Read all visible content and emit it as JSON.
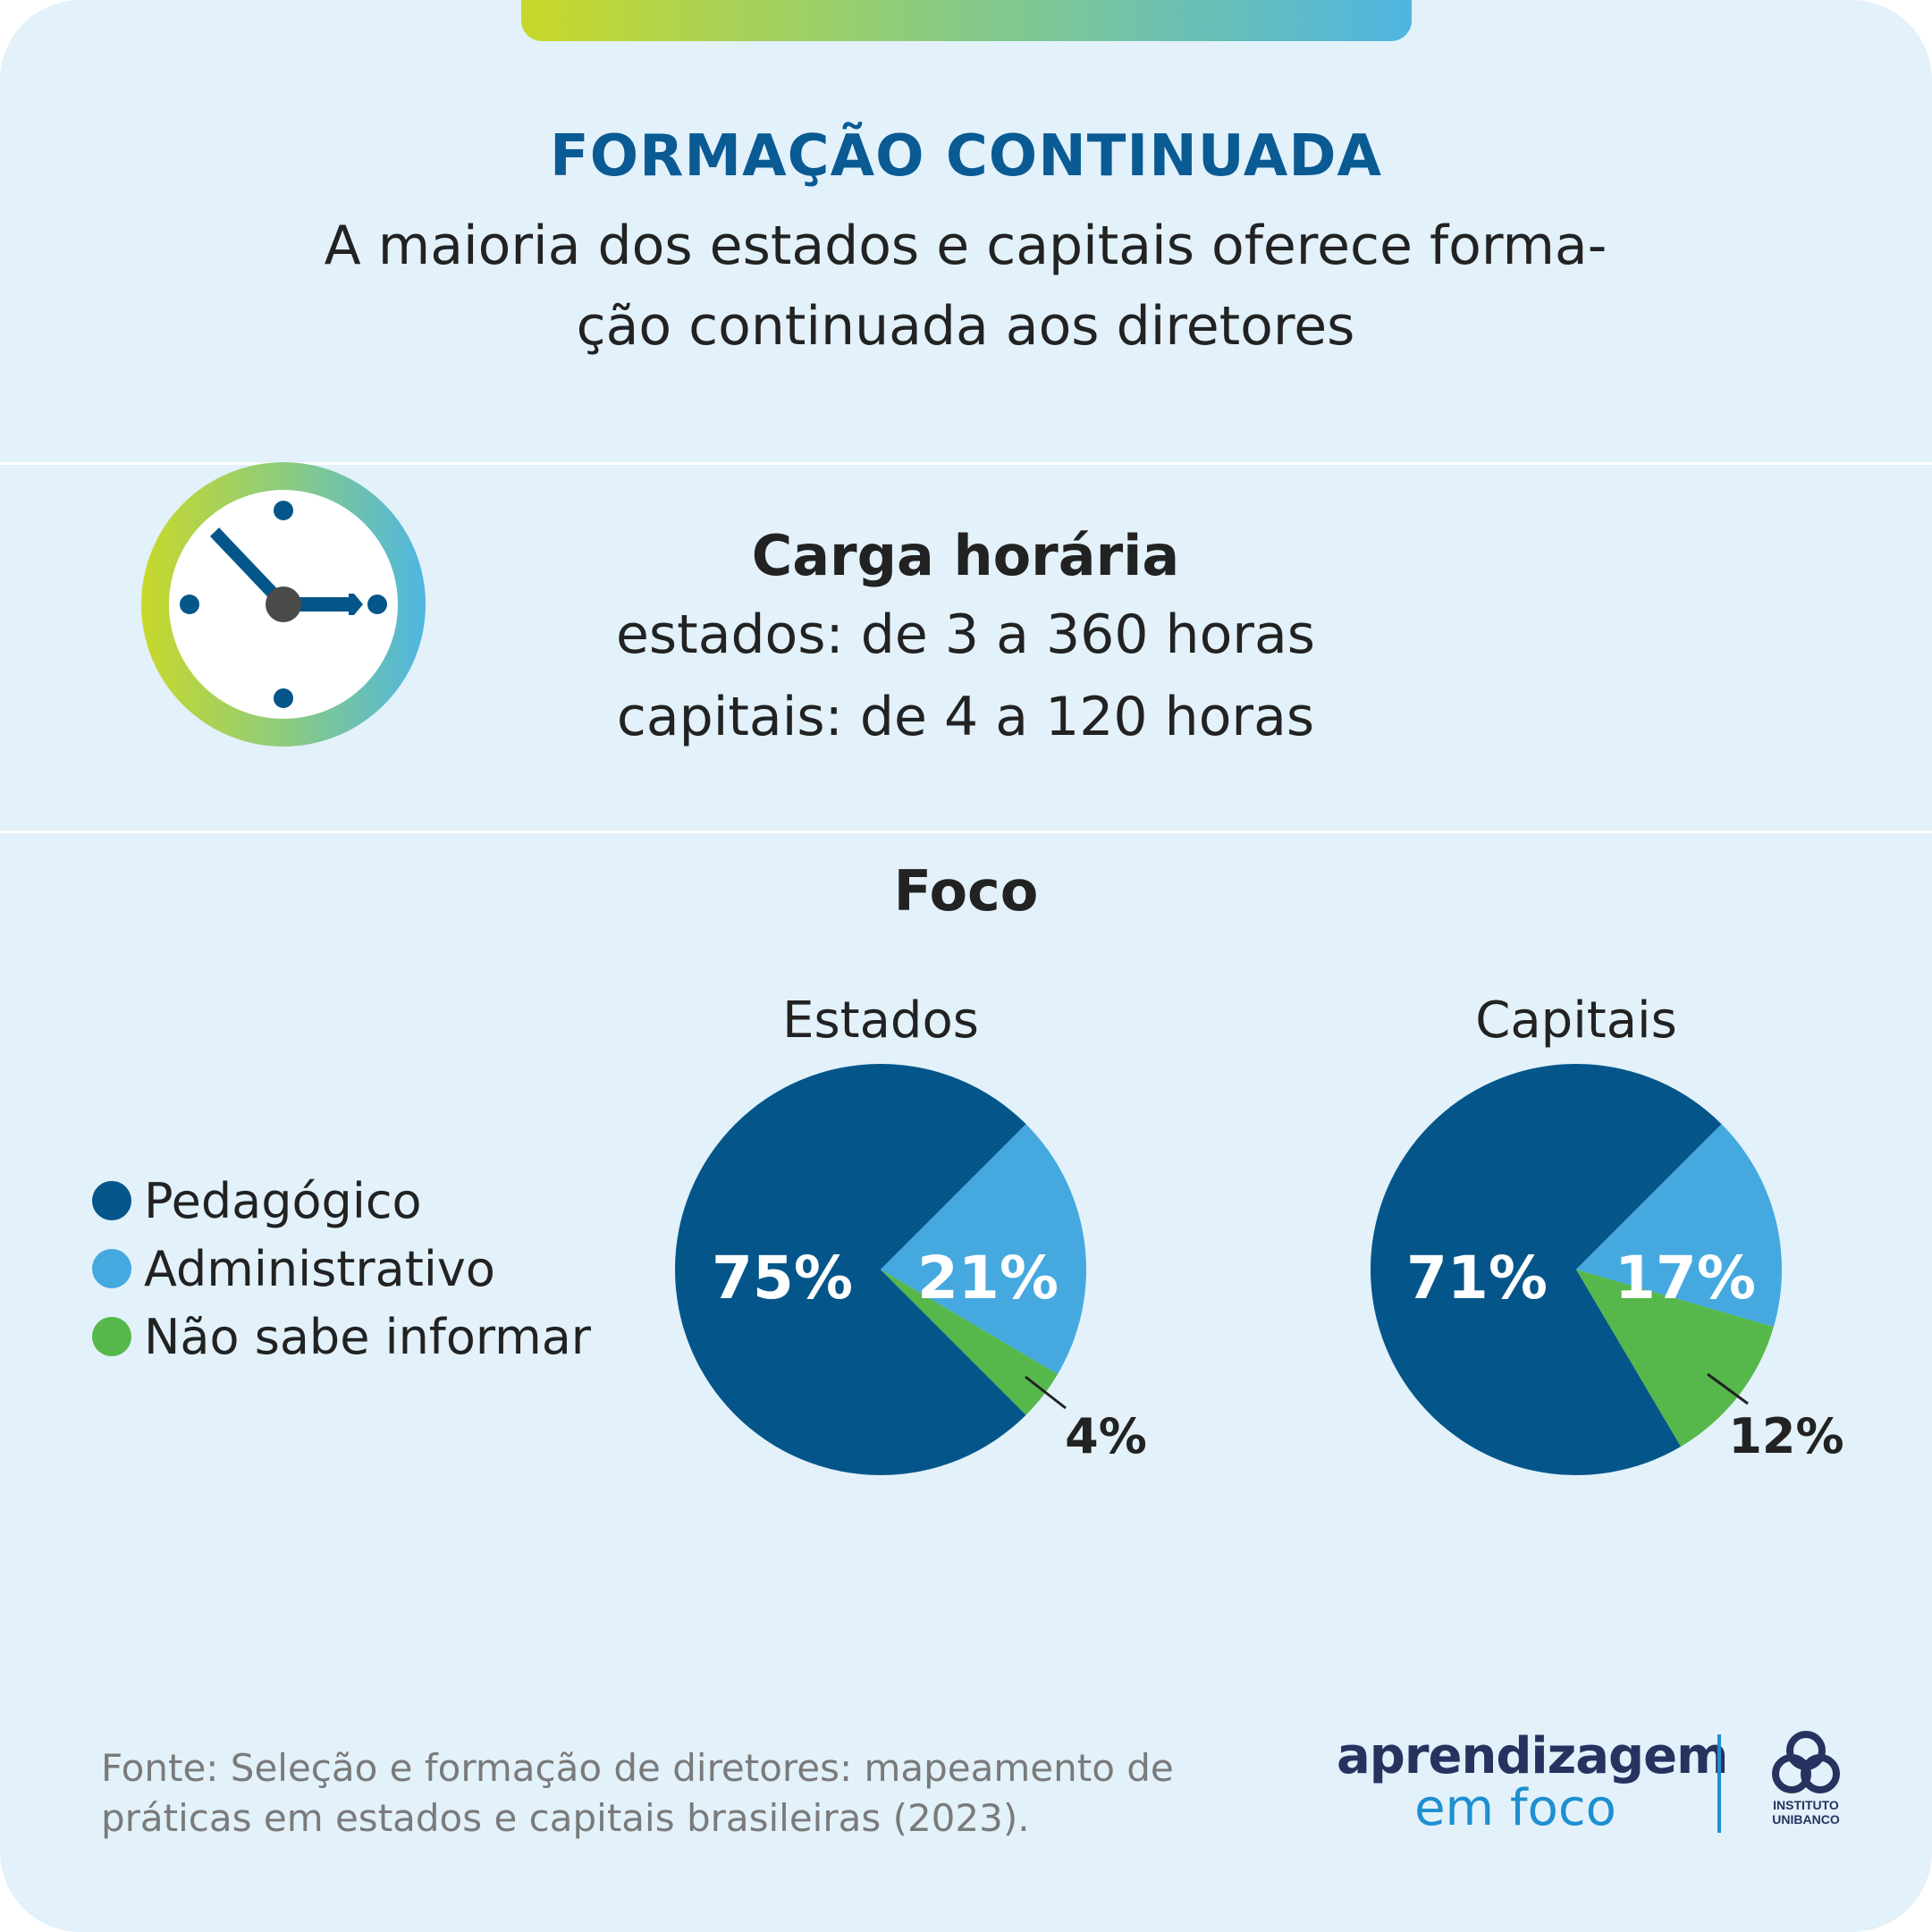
{
  "header": {
    "title": "FORMAÇÃO CONTINUADA",
    "subtitle_line1": "A maioria dos estados e capitais oferece forma-",
    "subtitle_line2": "ção continuada aos diretores"
  },
  "carga": {
    "title": "Carga horária",
    "estados": "estados: de 3 a 360 horas",
    "capitais": "capitais: de 4 a 120 horas",
    "icon": "clock-icon"
  },
  "foco": {
    "title": "Foco"
  },
  "legend": [
    {
      "label": "Pedagógico",
      "color": "#04568a"
    },
    {
      "label": "Administrativo",
      "color": "#45a9e0"
    },
    {
      "label": "Não sabe informar",
      "color": "#56b84a"
    }
  ],
  "chart_data": [
    {
      "type": "pie",
      "title": "Estados",
      "categories": [
        "Pedagógico",
        "Administrativo",
        "Não sabe informar"
      ],
      "values": [
        75,
        21,
        4
      ],
      "labels": [
        "75%",
        "21%",
        "4%"
      ],
      "colors": [
        "#04568a",
        "#45a9e0",
        "#56b84a"
      ]
    },
    {
      "type": "pie",
      "title": "Capitais",
      "categories": [
        "Pedagógico",
        "Administrativo",
        "Não sabe informar"
      ],
      "values": [
        71,
        17,
        12
      ],
      "labels": [
        "71%",
        "17%",
        "12%"
      ],
      "colors": [
        "#04568a",
        "#45a9e0",
        "#56b84a"
      ]
    }
  ],
  "footer": {
    "source_line1": "Fonte: Seleção e formação de diretores: mapeamento de",
    "source_line2": "práticas em estados e capitais brasileiras (2023).",
    "logo_main": "aprendizagem",
    "logo_sub": "em foco",
    "institute_line1": "INSTITUTO",
    "institute_line2": "UNIBANCO"
  }
}
